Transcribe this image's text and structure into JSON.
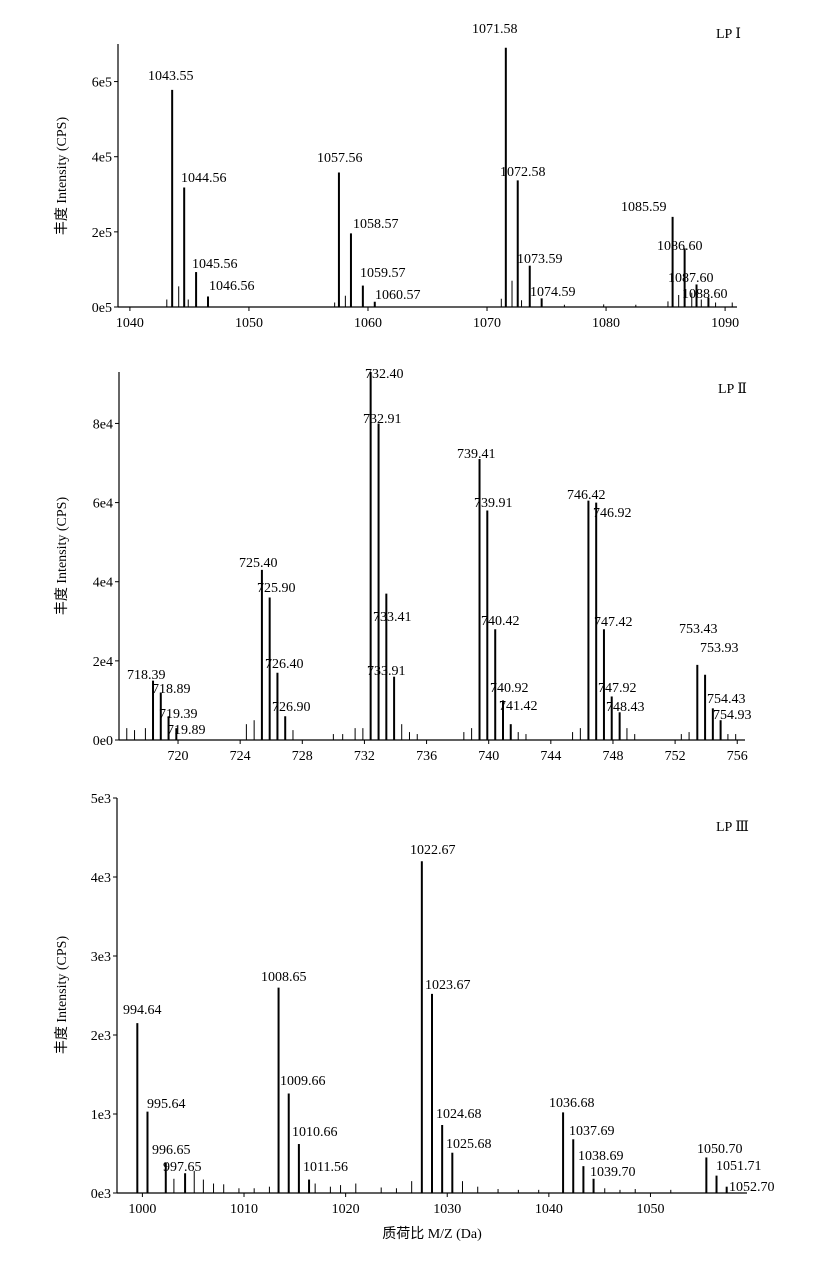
{
  "chart_data": [
    {
      "type": "bar",
      "panel_label": "LP Ⅰ",
      "ylabel": "丰度 Intensity (CPS)",
      "xlim": [
        1039,
        1091
      ],
      "ylim": [
        0,
        700000
      ],
      "x_ticks": [
        1040,
        1050,
        1060,
        1070,
        1080,
        1090
      ],
      "x_tick_labels": [
        "1040",
        "1050",
        "1060",
        "1070",
        "1080",
        "1090"
      ],
      "y_ticks": [
        0,
        200000,
        400000,
        600000
      ],
      "y_tick_labels": [
        "0e5",
        "2e5",
        "4e5",
        "6e5"
      ],
      "peaks": [
        {
          "x": 1043.55,
          "y": 578000,
          "label": "1043.55"
        },
        {
          "x": 1044.56,
          "y": 318000,
          "label": "1044.56"
        },
        {
          "x": 1045.56,
          "y": 93000,
          "label": "1045.56"
        },
        {
          "x": 1046.56,
          "y": 28000,
          "label": "1046.56"
        },
        {
          "x": 1057.56,
          "y": 358000,
          "label": "1057.56"
        },
        {
          "x": 1058.57,
          "y": 196000,
          "label": "1058.57"
        },
        {
          "x": 1059.57,
          "y": 57000,
          "label": "1059.57"
        },
        {
          "x": 1060.57,
          "y": 14000,
          "label": "1060.57"
        },
        {
          "x": 1071.58,
          "y": 690000,
          "label": "1071.58"
        },
        {
          "x": 1072.58,
          "y": 337000,
          "label": "1072.58"
        },
        {
          "x": 1073.59,
          "y": 110000,
          "label": "1073.59"
        },
        {
          "x": 1074.59,
          "y": 23000,
          "label": "1074.59"
        },
        {
          "x": 1085.59,
          "y": 240000,
          "label": "1085.59"
        },
        {
          "x": 1086.6,
          "y": 156000,
          "label": "1086.60"
        },
        {
          "x": 1087.6,
          "y": 60000,
          "label": "1087.60"
        },
        {
          "x": 1088.6,
          "y": 25000,
          "label": "1088.60"
        }
      ],
      "minor_peaks": [
        {
          "x": 1043.1,
          "y": 20000
        },
        {
          "x": 1044.1,
          "y": 55000
        },
        {
          "x": 1044.9,
          "y": 20000
        },
        {
          "x": 1057.2,
          "y": 12000
        },
        {
          "x": 1058.1,
          "y": 30000
        },
        {
          "x": 1071.2,
          "y": 22000
        },
        {
          "x": 1072.1,
          "y": 70000
        },
        {
          "x": 1072.9,
          "y": 18000
        },
        {
          "x": 1085.2,
          "y": 15000
        },
        {
          "x": 1086.1,
          "y": 32000
        },
        {
          "x": 1087.2,
          "y": 38000
        },
        {
          "x": 1088.0,
          "y": 20000
        },
        {
          "x": 1089.2,
          "y": 12000
        },
        {
          "x": 1090.6,
          "y": 12000
        },
        {
          "x": 1076.5,
          "y": 6000
        },
        {
          "x": 1079.8,
          "y": 7000
        },
        {
          "x": 1082.5,
          "y": 6000
        }
      ]
    },
    {
      "type": "bar",
      "panel_label": "LP Ⅱ",
      "ylabel": "丰度 Intensity (CPS)",
      "xlim": [
        716.2,
        756.5
      ],
      "ylim": [
        0,
        93000
      ],
      "x_ticks": [
        720,
        724,
        728,
        732,
        736,
        740,
        744,
        748,
        752,
        756
      ],
      "x_tick_labels": [
        "720",
        "724",
        "728",
        "732",
        "736",
        "740",
        "744",
        "748",
        "752",
        "756"
      ],
      "y_ticks": [
        0,
        20000,
        40000,
        60000,
        80000
      ],
      "y_tick_labels": [
        "0e0",
        "2e4",
        "4e4",
        "6e4",
        "8e4"
      ],
      "peaks": [
        {
          "x": 718.39,
          "y": 15000,
          "label": "718.39"
        },
        {
          "x": 718.89,
          "y": 12000,
          "label": "718.89"
        },
        {
          "x": 719.39,
          "y": 6000,
          "label": "719.39"
        },
        {
          "x": 719.89,
          "y": 3000,
          "label": "719.89"
        },
        {
          "x": 725.4,
          "y": 43000,
          "label": "725.40"
        },
        {
          "x": 725.9,
          "y": 36000,
          "label": "725.90"
        },
        {
          "x": 726.4,
          "y": 17000,
          "label": "726.40"
        },
        {
          "x": 726.9,
          "y": 6000,
          "label": "726.90"
        },
        {
          "x": 732.4,
          "y": 93000,
          "label": "732.40"
        },
        {
          "x": 732.91,
          "y": 80000,
          "label": "732.91"
        },
        {
          "x": 733.41,
          "y": 37000,
          "label": "733.41"
        },
        {
          "x": 733.91,
          "y": 16000,
          "label": "733.91"
        },
        {
          "x": 739.41,
          "y": 71000,
          "label": "739.41"
        },
        {
          "x": 739.91,
          "y": 58000,
          "label": "739.91"
        },
        {
          "x": 740.42,
          "y": 28000,
          "label": "740.42"
        },
        {
          "x": 740.92,
          "y": 10000,
          "label": "740.92"
        },
        {
          "x": 741.42,
          "y": 4000,
          "label": "741.42"
        },
        {
          "x": 746.42,
          "y": 60500,
          "label": "746.42"
        },
        {
          "x": 746.92,
          "y": 60000,
          "label": "746.92"
        },
        {
          "x": 747.42,
          "y": 28000,
          "label": "747.42"
        },
        {
          "x": 747.92,
          "y": 11000,
          "label": "747.92"
        },
        {
          "x": 748.43,
          "y": 7000,
          "label": "748.43"
        },
        {
          "x": 753.43,
          "y": 19000,
          "label": "753.43"
        },
        {
          "x": 753.93,
          "y": 16500,
          "label": "753.93"
        },
        {
          "x": 754.43,
          "y": 8000,
          "label": "754.43"
        },
        {
          "x": 754.93,
          "y": 5000,
          "label": "754.93"
        }
      ],
      "minor_peaks": [
        {
          "x": 716.7,
          "y": 3000
        },
        {
          "x": 717.2,
          "y": 2500
        },
        {
          "x": 717.9,
          "y": 3000
        },
        {
          "x": 724.4,
          "y": 4000
        },
        {
          "x": 724.9,
          "y": 5000
        },
        {
          "x": 727.4,
          "y": 2500
        },
        {
          "x": 730.0,
          "y": 1500
        },
        {
          "x": 730.6,
          "y": 1500
        },
        {
          "x": 731.4,
          "y": 3000
        },
        {
          "x": 731.9,
          "y": 3000
        },
        {
          "x": 734.4,
          "y": 4000
        },
        {
          "x": 734.9,
          "y": 2000
        },
        {
          "x": 735.4,
          "y": 1500
        },
        {
          "x": 738.4,
          "y": 2000
        },
        {
          "x": 738.9,
          "y": 3000
        },
        {
          "x": 741.9,
          "y": 2000
        },
        {
          "x": 742.4,
          "y": 1500
        },
        {
          "x": 745.4,
          "y": 2000
        },
        {
          "x": 745.9,
          "y": 3000
        },
        {
          "x": 748.9,
          "y": 3000
        },
        {
          "x": 749.4,
          "y": 1500
        },
        {
          "x": 752.4,
          "y": 1500
        },
        {
          "x": 752.9,
          "y": 2000
        },
        {
          "x": 755.4,
          "y": 1500
        },
        {
          "x": 755.9,
          "y": 1500
        }
      ]
    },
    {
      "type": "bar",
      "panel_label": "LP Ⅲ",
      "ylabel": "丰度 Intensity (CPS)",
      "xlabel": "质荷比 M/Z (Da)",
      "xlim": [
        997.5,
        1059.5
      ],
      "ylim": [
        0,
        5000
      ],
      "x_ticks": [
        1000,
        1010,
        1020,
        1030,
        1040,
        1050
      ],
      "x_tick_labels": [
        "1000",
        "1010",
        "1020",
        "1030",
        "1040",
        "1050"
      ],
      "y_ticks": [
        0,
        1000,
        2000,
        3000,
        4000,
        5000
      ],
      "y_tick_labels": [
        "0e3",
        "1e3",
        "2e3",
        "3e3",
        "4e3",
        "5e3"
      ],
      "peaks": [
        {
          "x": 999.5,
          "y": 2150,
          "label": "994.64"
        },
        {
          "x": 1000.5,
          "y": 1030,
          "label": "995.64"
        },
        {
          "x": 1002.3,
          "y": 380,
          "label": "996.65"
        },
        {
          "x": 1004.2,
          "y": 250,
          "label": "997.65"
        },
        {
          "x": 1013.4,
          "y": 2600,
          "label": "1008.65"
        },
        {
          "x": 1014.4,
          "y": 1260,
          "label": "1009.66"
        },
        {
          "x": 1015.4,
          "y": 620,
          "label": "1010.66"
        },
        {
          "x": 1016.4,
          "y": 170,
          "label": "1011.56"
        },
        {
          "x": 1027.5,
          "y": 4200,
          "label": "1022.67"
        },
        {
          "x": 1028.5,
          "y": 2520,
          "label": "1023.67"
        },
        {
          "x": 1029.5,
          "y": 860,
          "label": "1024.68"
        },
        {
          "x": 1030.5,
          "y": 510,
          "label": "1025.68"
        },
        {
          "x": 1041.4,
          "y": 1020,
          "label": "1036.68"
        },
        {
          "x": 1042.4,
          "y": 680,
          "label": "1037.69"
        },
        {
          "x": 1043.4,
          "y": 340,
          "label": "1038.69"
        },
        {
          "x": 1044.4,
          "y": 180,
          "label": "1039.70"
        },
        {
          "x": 1055.5,
          "y": 450,
          "label": "1050.70"
        },
        {
          "x": 1056.5,
          "y": 220,
          "label": "1051.71"
        },
        {
          "x": 1057.5,
          "y": 80,
          "label": "1052.70"
        }
      ],
      "minor_peaks": [
        {
          "x": 1003.1,
          "y": 180
        },
        {
          "x": 1005.1,
          "y": 280
        },
        {
          "x": 1006.0,
          "y": 170
        },
        {
          "x": 1007.0,
          "y": 120
        },
        {
          "x": 1008.0,
          "y": 110
        },
        {
          "x": 1009.5,
          "y": 60
        },
        {
          "x": 1011.0,
          "y": 60
        },
        {
          "x": 1012.5,
          "y": 80
        },
        {
          "x": 1017.0,
          "y": 120
        },
        {
          "x": 1018.5,
          "y": 80
        },
        {
          "x": 1019.5,
          "y": 100
        },
        {
          "x": 1021.0,
          "y": 120
        },
        {
          "x": 1023.5,
          "y": 70
        },
        {
          "x": 1025.0,
          "y": 60
        },
        {
          "x": 1026.5,
          "y": 150
        },
        {
          "x": 1031.5,
          "y": 150
        },
        {
          "x": 1033.0,
          "y": 80
        },
        {
          "x": 1035.0,
          "y": 50
        },
        {
          "x": 1037.0,
          "y": 40
        },
        {
          "x": 1039.0,
          "y": 40
        },
        {
          "x": 1045.5,
          "y": 60
        },
        {
          "x": 1047.0,
          "y": 40
        },
        {
          "x": 1048.5,
          "y": 50
        },
        {
          "x": 1052.0,
          "y": 40
        }
      ]
    }
  ]
}
